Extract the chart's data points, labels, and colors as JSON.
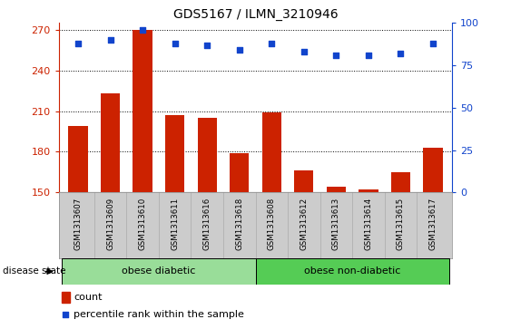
{
  "title": "GDS5167 / ILMN_3210946",
  "samples": [
    "GSM1313607",
    "GSM1313609",
    "GSM1313610",
    "GSM1313611",
    "GSM1313616",
    "GSM1313618",
    "GSM1313608",
    "GSM1313612",
    "GSM1313613",
    "GSM1313614",
    "GSM1313615",
    "GSM1313617"
  ],
  "counts": [
    199,
    223,
    270,
    207,
    205,
    179,
    209,
    166,
    154,
    152,
    165,
    183
  ],
  "percentiles": [
    88,
    90,
    96,
    88,
    87,
    84,
    88,
    83,
    81,
    81,
    82,
    88
  ],
  "ylim_left": [
    150,
    275
  ],
  "ylim_right": [
    0,
    100
  ],
  "yticks_left": [
    150,
    180,
    210,
    240,
    270
  ],
  "yticks_right": [
    0,
    25,
    50,
    75,
    100
  ],
  "bar_color": "#CC2200",
  "dot_color": "#1144CC",
  "group1_label": "obese diabetic",
  "group2_label": "obese non-diabetic",
  "group1_count": 6,
  "group2_count": 6,
  "group1_color": "#99dd99",
  "group2_color": "#55cc55",
  "disease_state_label": "disease state",
  "legend_count_label": "count",
  "legend_pct_label": "percentile rank within the sample",
  "tick_label_bg": "#cccccc",
  "tick_label_edge": "#999999"
}
